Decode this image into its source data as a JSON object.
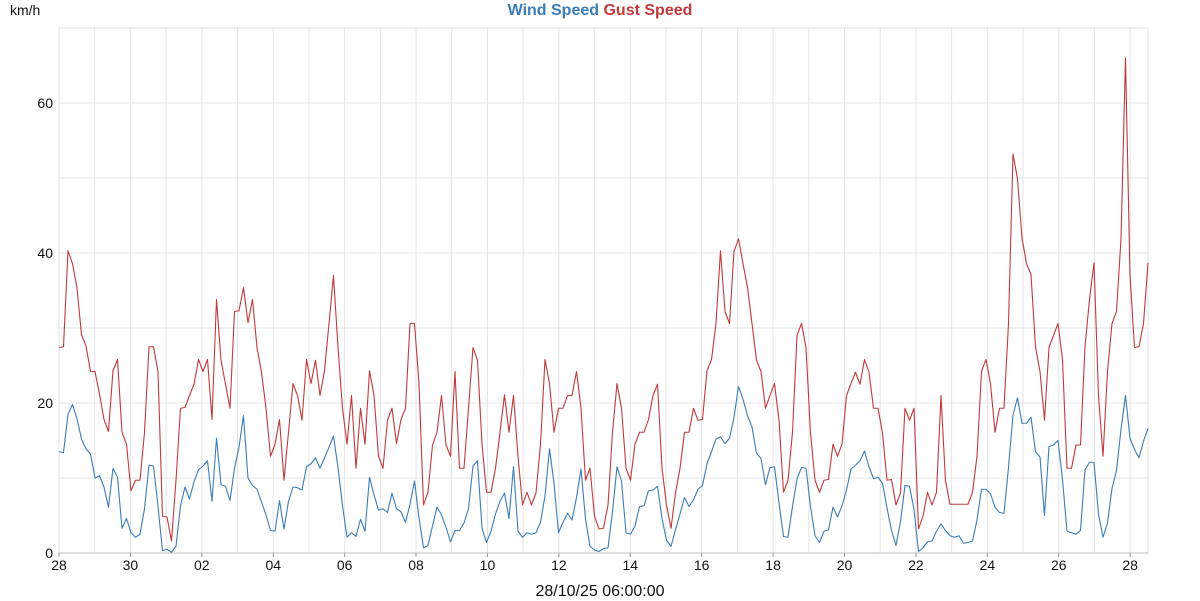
{
  "chart_data": {
    "type": "line",
    "title_parts": [
      "Wind Speed",
      "Gust Speed"
    ],
    "ylabel": "km/h",
    "footer": "28/10/25 06:00:00",
    "ylim": [
      0,
      70
    ],
    "yticks": [
      0,
      20,
      40,
      60
    ],
    "xrange": [
      0,
      30.5
    ],
    "xticks": [
      {
        "pos": 0,
        "label": "28"
      },
      {
        "pos": 2,
        "label": "30"
      },
      {
        "pos": 4,
        "label": "02"
      },
      {
        "pos": 6,
        "label": "04"
      },
      {
        "pos": 8,
        "label": "06"
      },
      {
        "pos": 10,
        "label": "08"
      },
      {
        "pos": 12,
        "label": "10"
      },
      {
        "pos": 14,
        "label": "12"
      },
      {
        "pos": 16,
        "label": "14"
      },
      {
        "pos": 18,
        "label": "16"
      },
      {
        "pos": 20,
        "label": "18"
      },
      {
        "pos": 22,
        "label": "20"
      },
      {
        "pos": 24,
        "label": "22"
      },
      {
        "pos": 26,
        "label": "24"
      },
      {
        "pos": 28,
        "label": "26"
      },
      {
        "pos": 30,
        "label": "28"
      }
    ],
    "series": [
      {
        "name": "Wind Speed",
        "color": "#3a7db8",
        "values": [
          13.5,
          13.4,
          18.5,
          19.8,
          17.9,
          15.2,
          13.9,
          13.2,
          10.0,
          10.3,
          8.8,
          6.1,
          11.3,
          10.1,
          3.3,
          4.6,
          2.7,
          2.1,
          2.5,
          5.9,
          11.7,
          11.6,
          6.2,
          0.3,
          0.5,
          0.1,
          0.9,
          6.3,
          8.8,
          7.2,
          9.5,
          11.1,
          11.6,
          12.3,
          6.9,
          15.3,
          9.1,
          8.9,
          7.0,
          11.3,
          14.1,
          18.3,
          10.0,
          9.0,
          8.5,
          6.8,
          5.1,
          3.0,
          2.9,
          7.0,
          3.2,
          6.9,
          8.8,
          8.7,
          8.4,
          11.5,
          11.9,
          12.7,
          11.3,
          12.7,
          14.1,
          15.6,
          11.4,
          6.3,
          2.1,
          2.7,
          2.2,
          4.5,
          2.9,
          10.1,
          7.8,
          5.7,
          5.9,
          5.4,
          8.0,
          5.9,
          5.5,
          4.1,
          6.5,
          9.6,
          4.7,
          0.7,
          1.0,
          3.6,
          6.1,
          5.1,
          3.4,
          1.5,
          3.0,
          3.0,
          4.0,
          5.9,
          11.6,
          12.3,
          3.3,
          1.4,
          2.9,
          5.2,
          6.9,
          8.0,
          4.6,
          11.5,
          2.9,
          2.1,
          2.7,
          2.5,
          2.7,
          4.1,
          7.6,
          13.9,
          9.3,
          2.7,
          4.1,
          5.3,
          4.4,
          7.4,
          11.2,
          4.5,
          0.9,
          0.4,
          0.2,
          0.6,
          0.7,
          5.5,
          11.5,
          9.6,
          2.7,
          2.5,
          3.6,
          6.2,
          6.3,
          8.3,
          8.4,
          8.9,
          4.6,
          1.7,
          0.9,
          3.1,
          5.2,
          7.4,
          6.2,
          7.1,
          8.5,
          9.0,
          11.9,
          13.5,
          15.2,
          15.5,
          14.6,
          15.3,
          18.1,
          22.2,
          20.5,
          18.3,
          16.8,
          13.3,
          12.6,
          9.1,
          11.4,
          11.5,
          6.7,
          2.2,
          2.1,
          6.2,
          9.9,
          11.4,
          11.3,
          6.2,
          2.3,
          1.4,
          2.9,
          3.1,
          6.1,
          4.8,
          6.3,
          8.4,
          11.2,
          11.7,
          12.3,
          13.6,
          11.5,
          9.9,
          10.1,
          9.3,
          6.0,
          3.0,
          1.0,
          4.2,
          9.0,
          8.9,
          5.8,
          0.2,
          0.7,
          1.5,
          1.6,
          2.9,
          3.9,
          3.0,
          2.3,
          2.1,
          2.3,
          1.3,
          1.4,
          1.6,
          4.4,
          8.5,
          8.5,
          7.9,
          6.1,
          5.4,
          5.3,
          11.4,
          18.4,
          20.7,
          17.3,
          17.3,
          18.1,
          13.5,
          12.8,
          5.0,
          14.2,
          14.4,
          15.0,
          9.8,
          2.9,
          2.7,
          2.5,
          3.0,
          11.1,
          12.1,
          12.1,
          5.2,
          2.1,
          4.0,
          8.6,
          11.0,
          16.5,
          21.0,
          15.3,
          13.8,
          12.7,
          14.9,
          16.6
        ]
      },
      {
        "name": "Gust Speed",
        "color": "#c0393b",
        "values": [
          27.4,
          27.5,
          40.3,
          38.6,
          35.3,
          29.1,
          27.6,
          24.2,
          24.2,
          21.2,
          17.8,
          16.2,
          24.3,
          25.8,
          16.1,
          14.5,
          8.3,
          9.7,
          9.7,
          16.1,
          27.5,
          27.5,
          24.2,
          4.9,
          4.8,
          1.6,
          9.7,
          19.3,
          19.4,
          21.0,
          22.5,
          25.8,
          24.2,
          25.8,
          17.8,
          33.8,
          25.7,
          22.5,
          19.3,
          32.2,
          32.3,
          35.4,
          30.7,
          33.8,
          27.4,
          24.1,
          19.3,
          12.9,
          14.5,
          17.8,
          9.7,
          16.1,
          22.6,
          21.0,
          17.7,
          25.8,
          22.6,
          25.7,
          21.0,
          24.3,
          30.6,
          37.0,
          27.4,
          19.3,
          14.5,
          21.0,
          11.3,
          19.3,
          14.5,
          24.3,
          21.0,
          12.9,
          11.3,
          17.7,
          19.3,
          14.6,
          17.8,
          19.3,
          30.6,
          30.6,
          22.6,
          6.4,
          8.1,
          14.4,
          16.1,
          21.0,
          14.4,
          12.9,
          24.2,
          11.3,
          11.3,
          19.3,
          27.4,
          25.7,
          14.5,
          8.1,
          8.1,
          11.3,
          16.1,
          21.1,
          16.1,
          21.0,
          12.9,
          6.4,
          8.1,
          6.4,
          8.0,
          14.5,
          25.8,
          22.6,
          16.1,
          19.3,
          19.3,
          21.0,
          21.0,
          24.2,
          19.3,
          9.7,
          11.3,
          4.9,
          3.2,
          3.3,
          6.4,
          16.1,
          22.6,
          19.3,
          11.3,
          9.7,
          14.5,
          16.1,
          16.1,
          17.8,
          21.0,
          22.5,
          11.3,
          6.4,
          3.3,
          8.0,
          11.3,
          16.1,
          16.1,
          19.3,
          17.7,
          17.8,
          24.3,
          25.8,
          30.6,
          40.3,
          32.2,
          30.6,
          40.2,
          41.9,
          38.6,
          35.4,
          30.6,
          25.7,
          24.2,
          19.3,
          21.0,
          22.6,
          17.7,
          8.1,
          9.7,
          16.1,
          29.0,
          30.6,
          27.4,
          16.0,
          9.7,
          8.1,
          9.7,
          9.8,
          14.5,
          12.9,
          14.5,
          21.0,
          22.6,
          24.1,
          22.5,
          25.8,
          24.1,
          19.3,
          19.3,
          16.0,
          9.7,
          9.8,
          6.4,
          8.0,
          19.3,
          17.7,
          19.3,
          3.2,
          4.9,
          8.1,
          6.4,
          8.1,
          21.0,
          9.6,
          6.5,
          6.5,
          6.5,
          6.5,
          6.5,
          8.1,
          12.9,
          24.2,
          25.8,
          22.6,
          16.1,
          19.3,
          19.3,
          30.6,
          53.2,
          49.9,
          42.0,
          38.6,
          37.1,
          27.5,
          24.2,
          17.7,
          27.4,
          29.0,
          30.6,
          25.8,
          11.3,
          11.3,
          14.4,
          14.4,
          27.5,
          33.8,
          38.7,
          21.0,
          12.9,
          24.2,
          30.6,
          32.2,
          41.9,
          66.0,
          37.0,
          27.4,
          27.5,
          30.6,
          38.7
        ]
      }
    ]
  }
}
